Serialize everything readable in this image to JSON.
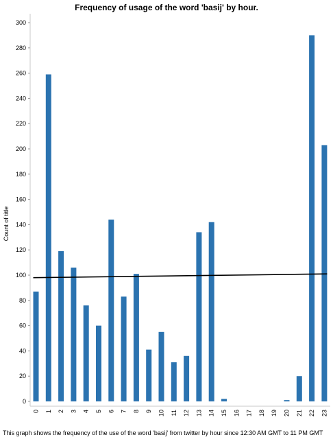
{
  "chart_data": {
    "type": "bar",
    "title": "Frequency of usage of the word 'basij' by hour.",
    "xlabel": "",
    "ylabel": "Count of title",
    "categories": [
      "0",
      "1",
      "2",
      "3",
      "4",
      "5",
      "6",
      "7",
      "8",
      "9",
      "10",
      "11",
      "12",
      "13",
      "14",
      "15",
      "16",
      "17",
      "18",
      "19",
      "20",
      "21",
      "22",
      "23"
    ],
    "values": [
      87,
      259,
      119,
      106,
      76,
      60,
      144,
      83,
      101,
      41,
      55,
      31,
      36,
      134,
      142,
      2,
      0,
      0,
      0,
      0,
      1,
      20,
      290,
      203
    ],
    "ylim": [
      0,
      300
    ],
    "yticks": [
      0,
      20,
      40,
      60,
      80,
      100,
      120,
      140,
      160,
      180,
      200,
      220,
      240,
      260,
      280,
      300
    ],
    "grid": false,
    "bar_color": "#2b73b0",
    "trend_line": {
      "start": 98,
      "end": 101,
      "color": "#000000"
    }
  },
  "caption": "This graph shows the frequency of the use of the word 'basij' from twitter by hour since 12:30 AM GMT to 11 PM GMT"
}
